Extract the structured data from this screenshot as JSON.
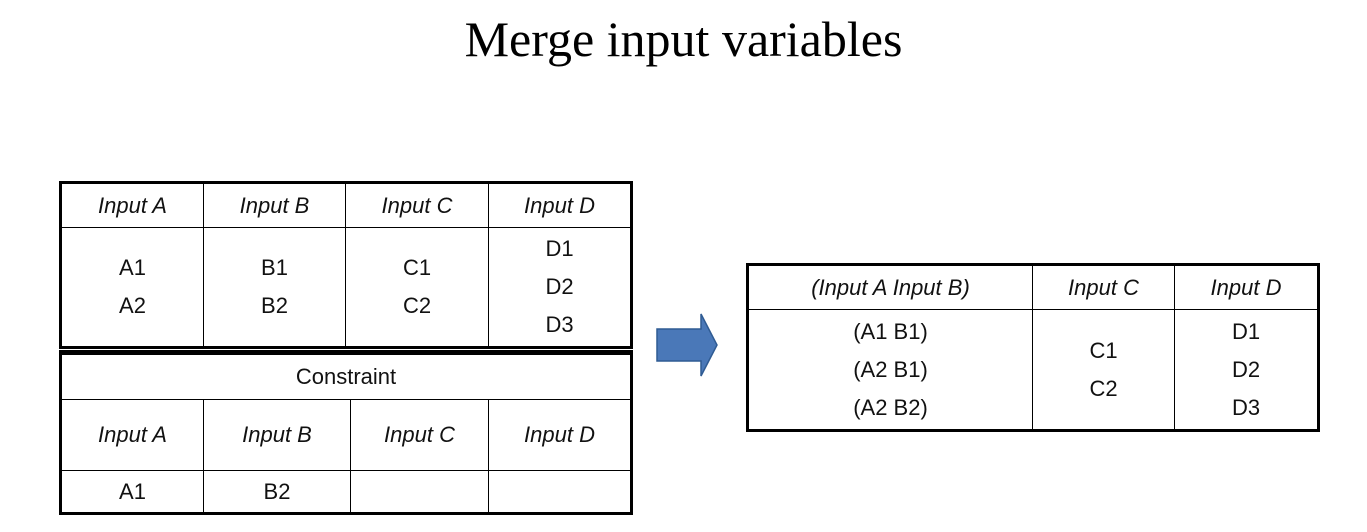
{
  "title": "Merge input variables",
  "input_table": {
    "headers": [
      "Input A",
      "Input B",
      "Input C",
      "Input D"
    ],
    "cells": [
      [
        "A1",
        "A2"
      ],
      [
        "B1",
        "B2"
      ],
      [
        "C1",
        "C2"
      ],
      [
        "D1",
        "D2",
        "D3"
      ]
    ]
  },
  "constraint": {
    "label": "Constraint",
    "headers": [
      "Input A",
      "Input B",
      "Input C",
      "Input D"
    ],
    "row": [
      "A1",
      "B2",
      "",
      ""
    ]
  },
  "merged_table": {
    "headers": [
      "(Input A Input B)",
      "Input C",
      "Input D"
    ],
    "cells": [
      [
        "(A1 B1)",
        "(A2 B1)",
        "(A2 B2)"
      ],
      [
        "C1",
        "C2"
      ],
      [
        "D1",
        "D2",
        "D3"
      ]
    ]
  },
  "colors": {
    "arrow_fill": "#4a78b8",
    "arrow_stroke": "#2f5b93"
  }
}
